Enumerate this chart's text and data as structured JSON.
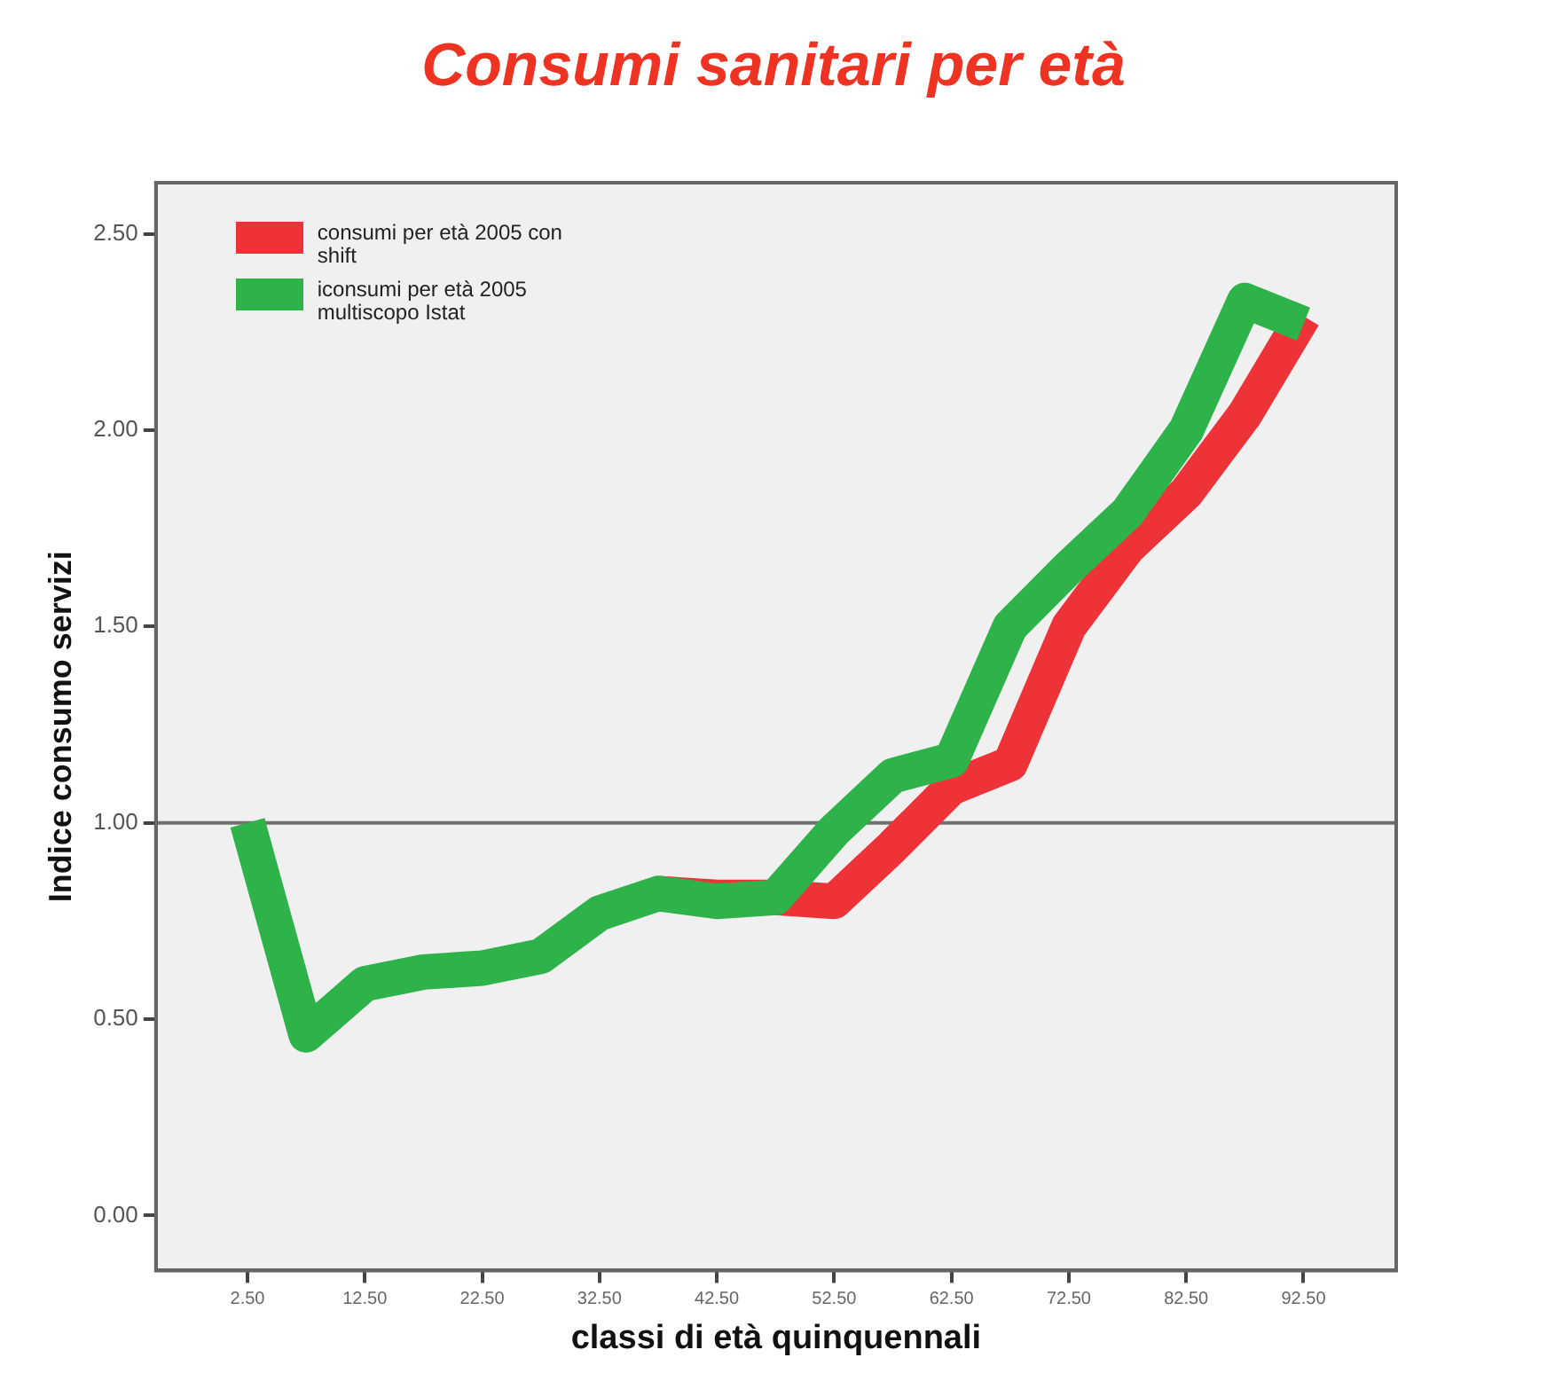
{
  "chart_data": {
    "type": "line",
    "title": "Consumi sanitari per età",
    "xlabel": "classi di età quinquennali",
    "ylabel": "Indice consumo servizi",
    "x": [
      2.5,
      7.5,
      12.5,
      17.5,
      22.5,
      27.5,
      32.5,
      37.5,
      42.5,
      47.5,
      52.5,
      57.5,
      62.5,
      67.5,
      72.5,
      77.5,
      82.5,
      87.5,
      92.5
    ],
    "series": [
      {
        "name": "consumi per età 2005 con shift",
        "color": "#ee3338",
        "values": [
          null,
          null,
          null,
          null,
          null,
          null,
          null,
          0.82,
          0.81,
          0.81,
          0.8,
          0.94,
          1.09,
          1.15,
          1.5,
          1.7,
          1.84,
          2.04,
          2.29
        ]
      },
      {
        "name": "iconsumi per età 2005 multiscopo Istat",
        "color": "#2db34a",
        "values": [
          1.0,
          0.46,
          0.59,
          0.62,
          0.63,
          0.66,
          0.77,
          0.82,
          0.8,
          0.81,
          0.98,
          1.12,
          1.16,
          1.5,
          1.65,
          1.79,
          2.0,
          2.33,
          2.27
        ]
      }
    ],
    "xlim": [
      -5.3,
      100.4
    ],
    "ylim": [
      -0.14,
      2.63
    ],
    "xticks": [
      {
        "value": 2.5,
        "label": "2.50"
      },
      {
        "value": 12.5,
        "label": "12.50"
      },
      {
        "value": 22.5,
        "label": "22.50"
      },
      {
        "value": 32.5,
        "label": "32.50"
      },
      {
        "value": 42.5,
        "label": "42.50"
      },
      {
        "value": 52.5,
        "label": "52.50"
      },
      {
        "value": 62.5,
        "label": "62.50"
      },
      {
        "value": 72.5,
        "label": "72.50"
      },
      {
        "value": 82.5,
        "label": "82.50"
      },
      {
        "value": 92.5,
        "label": "92.50"
      }
    ],
    "yticks": [
      {
        "value": 0,
        "label": "0.00"
      },
      {
        "value": 0.5,
        "label": "0.50"
      },
      {
        "value": 1,
        "label": "1.00"
      },
      {
        "value": 1.5,
        "label": "1.50"
      },
      {
        "value": 2,
        "label": "2.00"
      },
      {
        "value": 2.5,
        "label": "2.50"
      }
    ],
    "ref_lines": [
      {
        "axis": "y",
        "value": 1,
        "color": "#707070"
      }
    ],
    "legend": "top left",
    "grid": false,
    "marker": "none",
    "line_style": "solid"
  }
}
